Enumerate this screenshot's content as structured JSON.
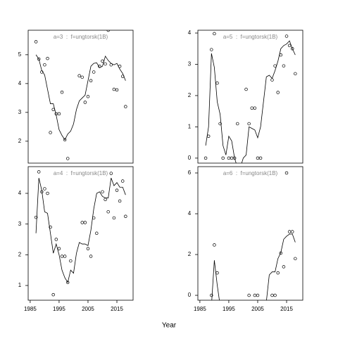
{
  "xlabel": "Year",
  "chart_data": [
    {
      "type": "scatter-line",
      "title": "a=3  :  f=ungtorsk(1B)",
      "xlim": [
        1984.3,
        2020.6
      ],
      "xticks": [
        1985,
        1995,
        2005,
        2015
      ],
      "ylim": [
        1.24,
        5.85
      ],
      "yticks": [
        2,
        3,
        4,
        5
      ],
      "points": {
        "x": [
          1987,
          1988,
          1989,
          1990,
          1991,
          1992,
          1993,
          1994,
          1995,
          1996,
          1997,
          1998,
          2002,
          2003,
          2004,
          2005,
          2006,
          2007,
          2009,
          2010,
          2011,
          2012,
          2013,
          2014,
          2015,
          2016,
          2017,
          2018
        ],
        "values": [
          5.45,
          4.85,
          4.4,
          4.65,
          4.87,
          2.3,
          3.1,
          2.95,
          2.95,
          3.7,
          2.05,
          1.4,
          4.27,
          4.22,
          3.35,
          3.55,
          4.1,
          4.4,
          4.6,
          4.78,
          4.68,
          5.85,
          4.65,
          3.8,
          3.78,
          4.6,
          4.25,
          3.2
        ]
      },
      "line": {
        "x": [
          1987,
          1988,
          1989,
          1990,
          1991,
          1992,
          1993,
          1994,
          1995,
          1996,
          1997,
          1998,
          1999,
          2000,
          2001,
          2002,
          2003,
          2004,
          2005,
          2006,
          2007,
          2008,
          2009,
          2010,
          2011,
          2012,
          2013,
          2014,
          2015,
          2016,
          2017,
          2018
        ],
        "values": [
          5.0,
          4.85,
          4.45,
          4.3,
          3.8,
          3.3,
          3.3,
          2.9,
          2.4,
          2.2,
          2.05,
          2.25,
          2.35,
          2.6,
          3.1,
          3.4,
          3.5,
          3.6,
          4.1,
          4.6,
          4.7,
          4.72,
          4.55,
          4.6,
          4.95,
          4.8,
          4.7,
          4.65,
          4.7,
          4.5,
          4.35,
          4.1
        ]
      }
    },
    {
      "type": "scatter-line",
      "title": "a=5  :  f=ungtorsk(1B)",
      "xlim": [
        1984.3,
        2020.6
      ],
      "xticks": [
        1985,
        1995,
        2005,
        2015
      ],
      "ylim": [
        -0.16,
        4.09
      ],
      "yticks": [
        0,
        1,
        2,
        3,
        4
      ],
      "points": {
        "x": [
          1987,
          1988,
          1989,
          1990,
          1991,
          1992,
          1993,
          1995,
          1996,
          1997,
          1998,
          2001,
          2002,
          2003,
          2004,
          2005,
          2006,
          2010,
          2011,
          2012,
          2013,
          2014,
          2015,
          2016,
          2017,
          2018
        ],
        "values": [
          0,
          0.7,
          3.47,
          3.98,
          2.4,
          1.1,
          0,
          0,
          0,
          0,
          1.1,
          2.2,
          1.1,
          1.6,
          1.6,
          0,
          0,
          2.5,
          2.95,
          2.1,
          3.3,
          2.95,
          3.9,
          3.6,
          3.5,
          2.7
        ]
      },
      "line": {
        "x": [
          1987,
          1988,
          1989,
          1990,
          1991,
          1992,
          1993,
          1994,
          1995,
          1996,
          1997,
          1998,
          1999,
          2000,
          2001,
          2002,
          2003,
          2004,
          2005,
          2006,
          2007,
          2008,
          2009,
          2010,
          2011,
          2012,
          2013,
          2014,
          2015,
          2016,
          2017,
          2018
        ],
        "values": [
          0.4,
          1.0,
          3.35,
          2.9,
          1.8,
          1.4,
          0.4,
          0.1,
          0.7,
          0.55,
          0,
          -0.3,
          -0.3,
          0,
          0.1,
          1.0,
          0.95,
          0.9,
          0.65,
          1.0,
          1.8,
          2.6,
          2.65,
          2.55,
          2.8,
          3.1,
          3.5,
          3.6,
          3.65,
          3.75,
          3.5,
          3.3
        ]
      }
    },
    {
      "type": "scatter-line",
      "title": "a=4  :  f=ungtorsk(1B)",
      "xlim": [
        1984.3,
        2020.6
      ],
      "xticks": [
        1985,
        1995,
        2005,
        2015
      ],
      "ylim": [
        0.52,
        4.87
      ],
      "yticks": [
        1,
        2,
        3,
        4
      ],
      "points": {
        "x": [
          1987,
          1988,
          1989,
          1990,
          1991,
          1992,
          1993,
          1994,
          1995,
          1996,
          1997,
          1998,
          1999,
          2003,
          2004,
          2005,
          2006,
          2007,
          2008,
          2010,
          2011,
          2012,
          2013,
          2014,
          2015,
          2016,
          2017,
          2018
        ],
        "values": [
          3.22,
          4.7,
          4.05,
          4.15,
          4.0,
          2.9,
          0.7,
          2.5,
          2.2,
          1.95,
          1.95,
          1.1,
          1.8,
          3.05,
          3.05,
          2.2,
          1.95,
          3.2,
          2.7,
          4.05,
          3.8,
          3.4,
          4.65,
          3.2,
          4.1,
          3.75,
          4.4,
          3.25
        ]
      },
      "line": {
        "x": [
          1987,
          1988,
          1989,
          1990,
          1991,
          1992,
          1993,
          1994,
          1995,
          1996,
          1997,
          1998,
          1999,
          2000,
          2001,
          2002,
          2003,
          2004,
          2005,
          2006,
          2007,
          2008,
          2009,
          2010,
          2011,
          2012,
          2013,
          2014,
          2015,
          2016,
          2017,
          2018
        ],
        "values": [
          2.7,
          4.5,
          4.1,
          3.4,
          3.35,
          2.7,
          2.05,
          2.35,
          2.0,
          1.5,
          1.25,
          1.1,
          1.5,
          1.4,
          2.05,
          2.4,
          2.35,
          2.35,
          2.3,
          2.8,
          3.5,
          4.0,
          4.05,
          3.9,
          3.85,
          3.85,
          4.5,
          4.25,
          4.35,
          4.2,
          4.2,
          3.95
        ]
      }
    },
    {
      "type": "scatter-line",
      "title": "a=6  :  f=ungtorsk(1B)",
      "xlim": [
        1984.3,
        2020.6
      ],
      "xticks": [
        1985,
        1995,
        2005,
        2015
      ],
      "ylim": [
        -0.24,
        6.31
      ],
      "yticks": [
        0,
        2,
        4,
        6
      ],
      "points": {
        "x": [
          1989,
          1990,
          1991,
          2002,
          2004,
          2005,
          2010,
          2011,
          2012,
          2013,
          2014,
          2015,
          2016,
          2017,
          2018
        ],
        "values": [
          0,
          2.47,
          1.1,
          0,
          0,
          0,
          0,
          0,
          1.1,
          2.07,
          1.4,
          6.0,
          3.12,
          3.12,
          1.8
        ]
      },
      "line": {
        "x": [
          1989,
          1990,
          1991,
          1992,
          2000,
          2008,
          2009,
          2010,
          2011,
          2012,
          2013,
          2014,
          2015,
          2016,
          2017,
          2018
        ],
        "values": [
          -0.5,
          1.72,
          0.5,
          -0.5,
          null,
          -0.3,
          1.0,
          1.15,
          1.15,
          1.8,
          2.1,
          2.75,
          2.9,
          3.0,
          3.0,
          2.6
        ]
      }
    }
  ]
}
